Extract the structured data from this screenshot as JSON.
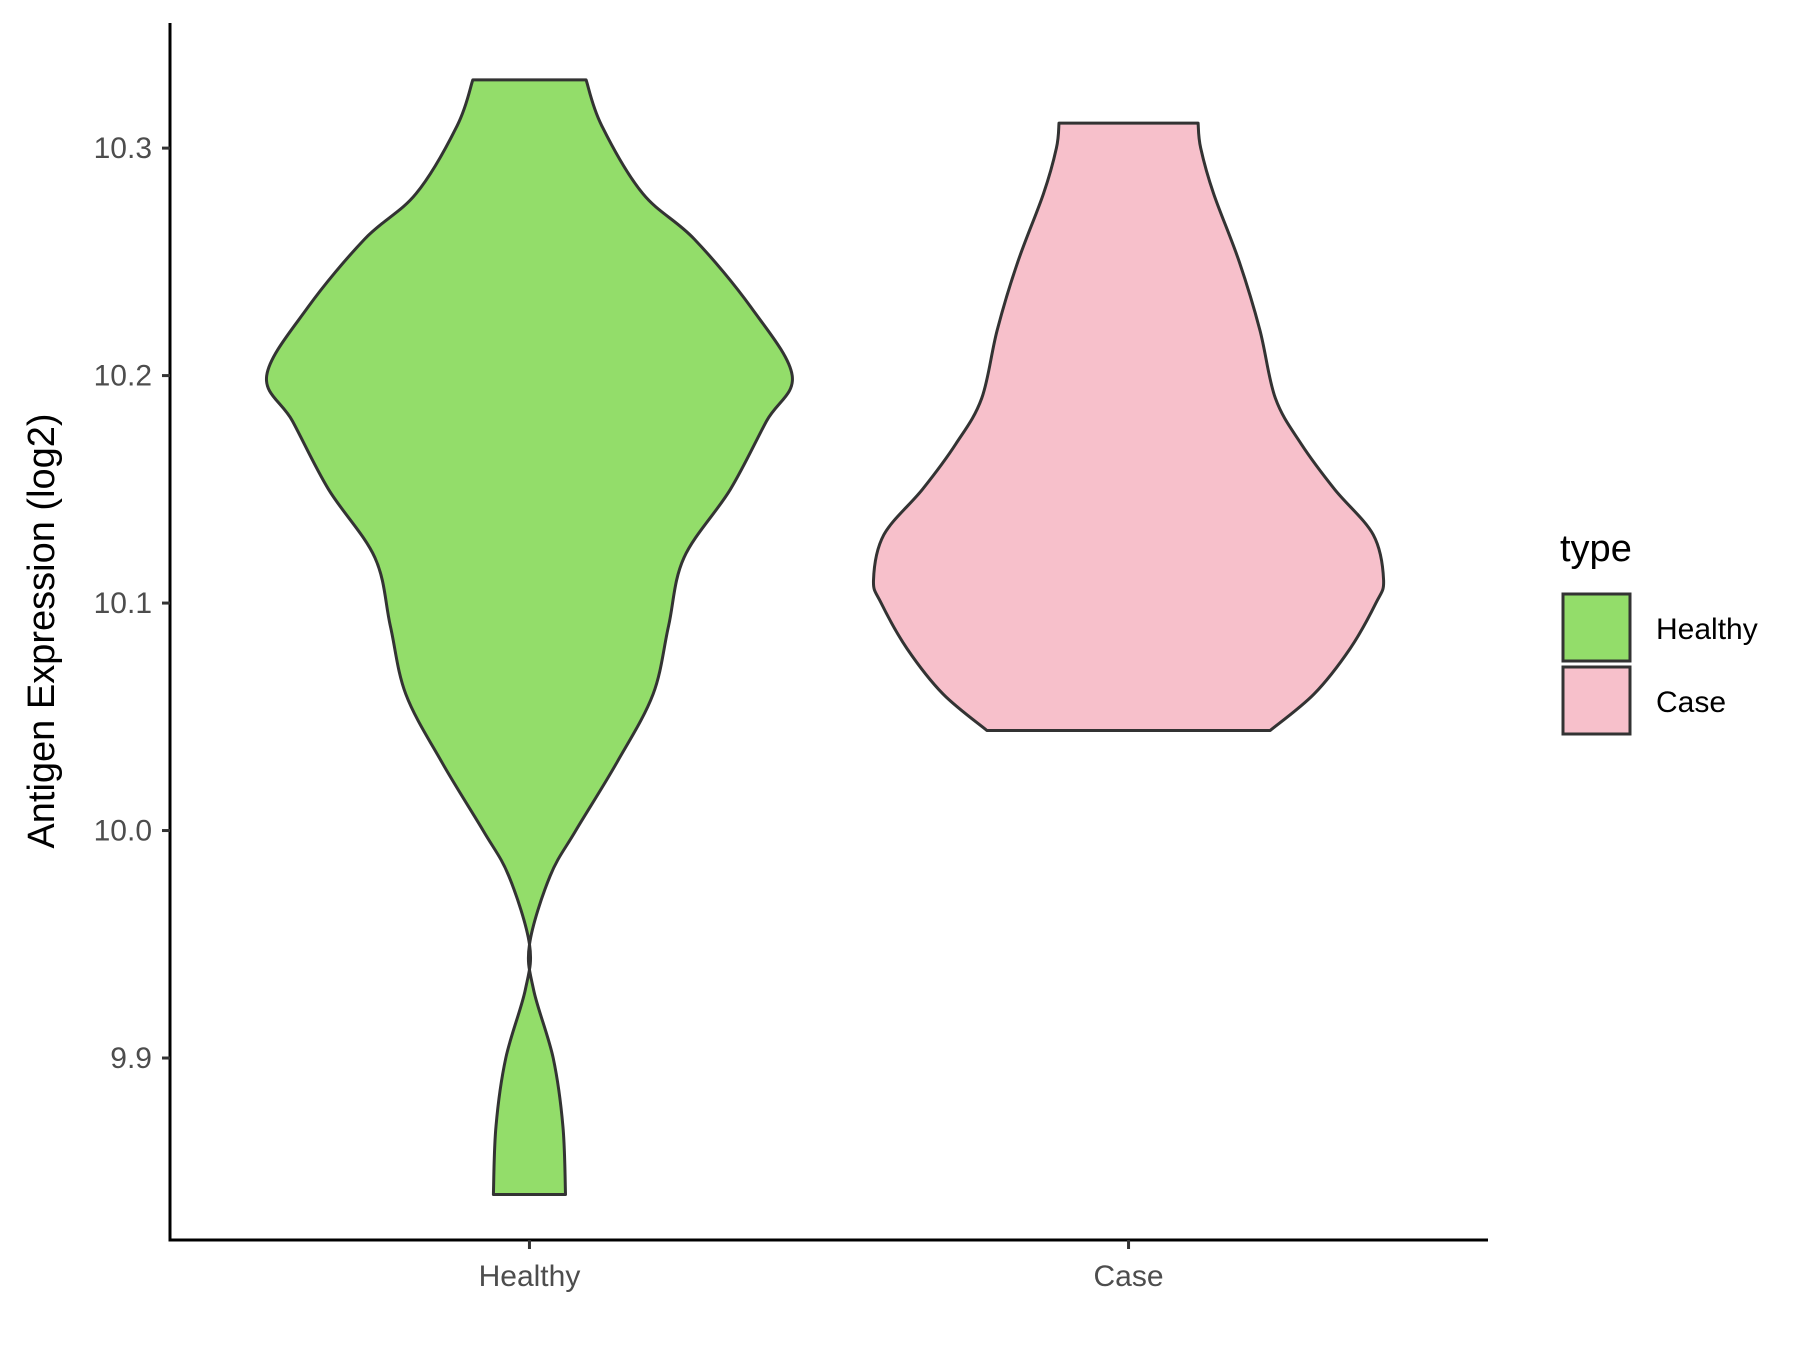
{
  "chart_data": {
    "type": "violin",
    "title": "",
    "xlabel": "",
    "ylabel": "Antigen Expression (log2)",
    "categories": [
      "Healthy",
      "Case"
    ],
    "ylim": [
      9.82,
      10.355
    ],
    "yticks": [
      9.9,
      10.0,
      10.1,
      10.2,
      10.3
    ],
    "ytick_labels": [
      "9.9",
      "10.0",
      "10.1",
      "10.2",
      "10.3"
    ],
    "grid": false,
    "legend": {
      "title": "type",
      "position": "right",
      "entries": [
        {
          "label": "Healthy",
          "color": "#93DD6A"
        },
        {
          "label": "Case",
          "color": "#F7C0CB"
        }
      ]
    },
    "series": [
      {
        "category": "Healthy",
        "color": "#93DD6A",
        "min": 9.84,
        "max": 10.33,
        "density_profile": [
          {
            "y": 9.84,
            "halfwidth": 0.07
          },
          {
            "y": 9.87,
            "halfwidth": 0.065
          },
          {
            "y": 9.9,
            "halfwidth": 0.046
          },
          {
            "y": 9.93,
            "halfwidth": 0.008
          },
          {
            "y": 9.95,
            "halfwidth": 0.0
          },
          {
            "y": 9.98,
            "halfwidth": 0.04
          },
          {
            "y": 10.0,
            "halfwidth": 0.09
          },
          {
            "y": 10.03,
            "halfwidth": 0.17
          },
          {
            "y": 10.06,
            "halfwidth": 0.24
          },
          {
            "y": 10.09,
            "halfwidth": 0.27
          },
          {
            "y": 10.12,
            "halfwidth": 0.3
          },
          {
            "y": 10.15,
            "halfwidth": 0.39
          },
          {
            "y": 10.18,
            "halfwidth": 0.46
          },
          {
            "y": 10.2,
            "halfwidth": 0.51
          },
          {
            "y": 10.23,
            "halfwidth": 0.43
          },
          {
            "y": 10.26,
            "halfwidth": 0.32
          },
          {
            "y": 10.28,
            "halfwidth": 0.22
          },
          {
            "y": 10.31,
            "halfwidth": 0.14
          },
          {
            "y": 10.33,
            "halfwidth": 0.11
          }
        ]
      },
      {
        "category": "Case",
        "color": "#F7C0CB",
        "min": 10.044,
        "max": 10.311,
        "density_profile": [
          {
            "y": 10.044,
            "halfwidth": 0.275
          },
          {
            "y": 10.06,
            "halfwidth": 0.36
          },
          {
            "y": 10.08,
            "halfwidth": 0.43
          },
          {
            "y": 10.1,
            "halfwidth": 0.48
          },
          {
            "y": 10.11,
            "halfwidth": 0.495
          },
          {
            "y": 10.13,
            "halfwidth": 0.475
          },
          {
            "y": 10.15,
            "halfwidth": 0.4
          },
          {
            "y": 10.17,
            "halfwidth": 0.335
          },
          {
            "y": 10.19,
            "halfwidth": 0.285
          },
          {
            "y": 10.22,
            "halfwidth": 0.255
          },
          {
            "y": 10.25,
            "halfwidth": 0.215
          },
          {
            "y": 10.28,
            "halfwidth": 0.165
          },
          {
            "y": 10.3,
            "halfwidth": 0.14
          },
          {
            "y": 10.311,
            "halfwidth": 0.135
          }
        ]
      }
    ]
  }
}
